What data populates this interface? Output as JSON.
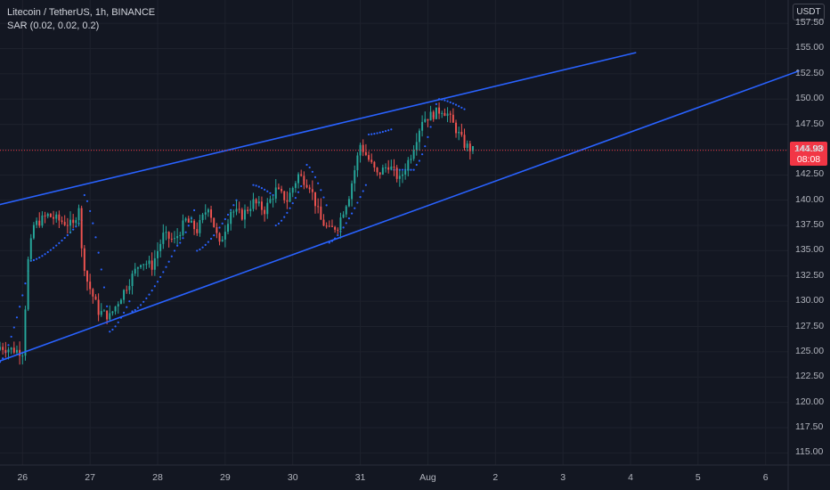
{
  "legend": {
    "symbol": "Litecoin / TetherUS, 1h, BINANCE",
    "indicator": "SAR (0.02, 0.02, 0.2)"
  },
  "currency": "USDT",
  "last_price": {
    "value": "144.93",
    "countdown": "08:08",
    "color": "#f23645"
  },
  "colors": {
    "background": "#131722",
    "grid": "#1e222d",
    "up": "#26a69a",
    "down": "#ef5350",
    "trendline": "#2962ff",
    "sar": "#2962ff",
    "price_line": "#f23645"
  },
  "chart_data": {
    "type": "candlestick",
    "y_ticks": [
      "157.50",
      "155.00",
      "152.50",
      "150.00",
      "147.50",
      "145.00",
      "142.50",
      "140.00",
      "137.50",
      "135.00",
      "132.50",
      "130.00",
      "127.50",
      "125.00",
      "122.50",
      "120.00",
      "117.50",
      "115.00"
    ],
    "x_ticks": [
      "26",
      "27",
      "28",
      "29",
      "30",
      "31",
      "Aug",
      "2",
      "3",
      "4",
      "5",
      "6"
    ],
    "ylim": [
      113.8,
      159.8
    ],
    "xlim": [
      "Jul 25 16:00",
      "Aug 6 08:00"
    ],
    "trendlines": [
      {
        "name": "upper",
        "x": [
          "Jul 25 15:00",
          "Aug 4 02:00"
        ],
        "y": [
          139.5,
          154.6
        ]
      },
      {
        "name": "lower",
        "x": [
          "Jul 25 15:00",
          "Aug 6 12:00"
        ],
        "y": [
          124.0,
          152.8
        ]
      }
    ],
    "price_path": {
      "x": [
        "Jul 25 16:00",
        "Jul 26 00:00",
        "Jul 26 02:00",
        "Jul 26 04:00",
        "Jul 26 09:00",
        "Jul 26 13:00",
        "Jul 26 18:00",
        "Jul 26 20:00",
        "Jul 26 21:00",
        "Jul 26 23:00",
        "Jul 27 03:00",
        "Jul 27 07:00",
        "Jul 27 12:00",
        "Jul 27 18:00",
        "Jul 27 22:00",
        "Jul 28 02:00",
        "Jul 28 06:00",
        "Jul 28 10:00",
        "Jul 28 14:00",
        "Jul 28 18:00",
        "Jul 28 22:00",
        "Jul 29 02:00",
        "Jul 29 06:00",
        "Jul 29 10:00",
        "Jul 29 14:00",
        "Jul 29 18:00",
        "Jul 29 22:00",
        "Jul 30 02:00",
        "Jul 30 06:00",
        "Jul 30 10:00",
        "Jul 30 13:00",
        "Jul 30 16:00",
        "Jul 30 20:00",
        "Jul 31 00:00",
        "Jul 31 03:00",
        "Jul 31 06:00",
        "Jul 31 10:00",
        "Jul 31 14:00",
        "Jul 31 18:00",
        "Jul 31 22:00",
        "Aug 01 02:00",
        "Aug 01 05:00",
        "Aug 01 07:00",
        "Aug 01 10:00",
        "Aug 01 13:00",
        "Aug 01 16:00"
      ],
      "y": [
        125.5,
        125.0,
        134.0,
        137.5,
        138.5,
        138.0,
        137.5,
        139.5,
        135.0,
        132.0,
        129.0,
        128.5,
        131.0,
        134.0,
        133.5,
        136.5,
        136.0,
        138.0,
        137.0,
        139.5,
        135.5,
        139.0,
        138.5,
        139.8,
        139.0,
        141.0,
        140.0,
        142.5,
        141.5,
        138.0,
        137.0,
        137.5,
        140.5,
        145.5,
        144.0,
        142.5,
        143.5,
        142.0,
        144.5,
        148.0,
        148.5,
        149.0,
        148.5,
        147.0,
        145.5,
        144.9
      ]
    },
    "sar_segments": [
      {
        "x": [
          "Jul 25 16:00",
          "Jul 26 02:00"
        ],
        "y": [
          124.0,
          133.0
        ]
      },
      {
        "x": [
          "Jul 26 03:00",
          "Jul 26 21:00"
        ],
        "y": [
          134.0,
          138.0
        ]
      },
      {
        "x": [
          "Jul 26 22:00",
          "Jul 27 06:00"
        ],
        "y": [
          140.5,
          129.5
        ]
      },
      {
        "x": [
          "Jul 27 07:00",
          "Jul 27 14:00"
        ],
        "y": [
          127.0,
          130.0
        ]
      },
      {
        "x": [
          "Jul 27 15:00",
          "Jul 28 06:00"
        ],
        "y": [
          129.0,
          135.0
        ]
      },
      {
        "x": [
          "Jul 28 07:00",
          "Jul 28 13:00"
        ],
        "y": [
          135.5,
          139.0
        ]
      },
      {
        "x": [
          "Jul 28 14:00",
          "Jul 29 04:00"
        ],
        "y": [
          135.0,
          140.0
        ]
      },
      {
        "x": [
          "Jul 29 10:00",
          "Jul 29 17:00"
        ],
        "y": [
          141.5,
          140.5
        ]
      },
      {
        "x": [
          "Jul 29 18:00",
          "Jul 30 04:00"
        ],
        "y": [
          137.5,
          142.0
        ]
      },
      {
        "x": [
          "Jul 30 05:00",
          "Jul 30 12:00"
        ],
        "y": [
          143.5,
          139.5
        ]
      },
      {
        "x": [
          "Jul 30 13:00",
          "Jul 31 02:00"
        ],
        "y": [
          135.8,
          141.5
        ]
      },
      {
        "x": [
          "Jul 31 03:00",
          "Jul 31 11:00"
        ],
        "y": [
          146.5,
          147.0
        ]
      },
      {
        "x": [
          "Jul 31 12:00",
          "Jul 31 19:00"
        ],
        "y": [
          143.0,
          143.0
        ]
      },
      {
        "x": [
          "Jul 31 20:00",
          "Aug 01 03:00"
        ],
        "y": [
          143.5,
          149.5
        ]
      },
      {
        "x": [
          "Aug 01 04:00",
          "Aug 01 13:00"
        ],
        "y": [
          150.0,
          149.0
        ]
      }
    ]
  }
}
